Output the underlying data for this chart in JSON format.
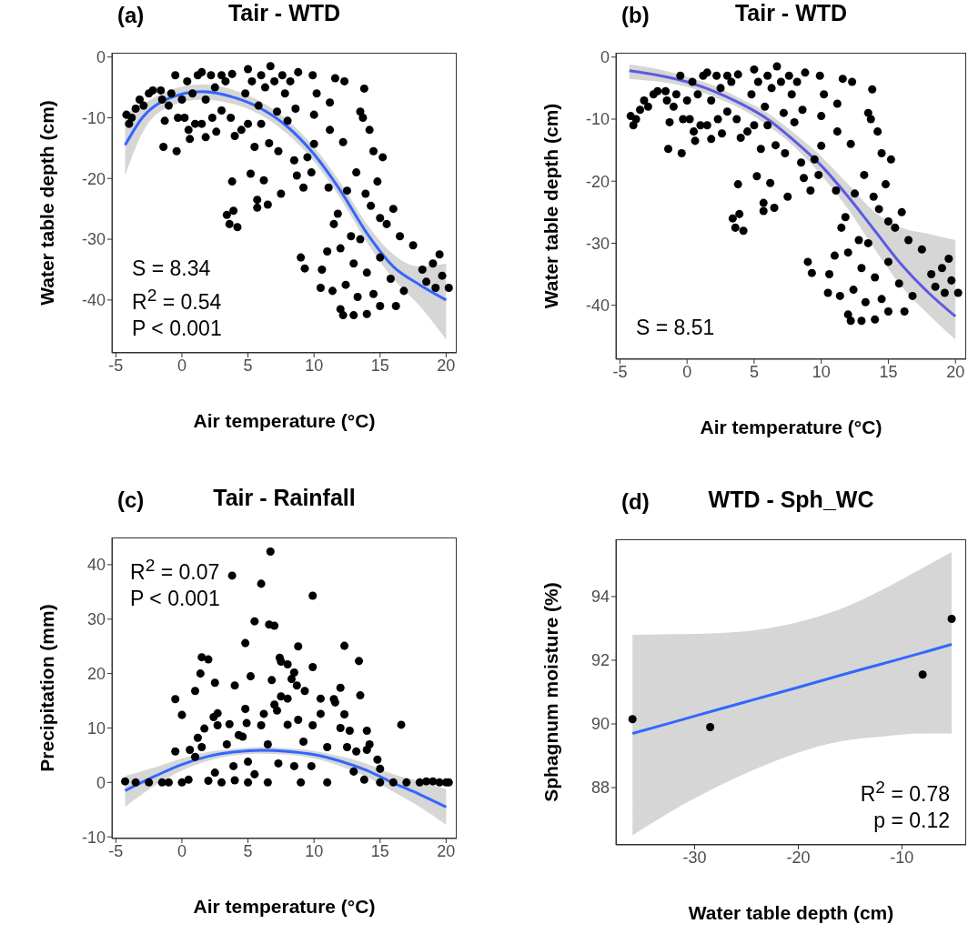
{
  "chart_data": [
    {
      "type": "scatter",
      "title": "Tair - WTD",
      "xlabel": "Air temperature (°C)",
      "ylabel": "Water table depth (cm)",
      "xlim": [
        -5.3,
        20.8
      ],
      "xticks": [
        -5,
        0,
        5,
        10,
        15,
        20
      ],
      "ylim": [
        -48.7,
        0.7
      ],
      "yticks": [
        0,
        -10,
        -20,
        -30,
        -40
      ],
      "annotations": [
        "(a)",
        "S = 8.34",
        "R$^{2}$ = 0.54",
        "P < 0.001"
      ],
      "series": [
        {
          "marker": "circle",
          "color": "#000000",
          "x": [
            -4.2,
            -4,
            -3.8,
            -3.5,
            -3.2,
            -2.9,
            -2.5,
            -2.2,
            -1.6,
            -1.5,
            -1.3,
            -1.4,
            -1,
            -0.8,
            -0.5,
            -0.4,
            -0.3,
            0,
            0.2,
            0.4,
            0.5,
            0.6,
            0.8,
            1,
            1.2,
            1.5,
            1.5,
            1.8,
            1.8,
            2.2,
            2.3,
            2.5,
            2.6,
            3,
            3,
            3.3,
            3.4,
            3.6,
            3.7,
            3.8,
            3.8,
            3.9,
            4,
            4.2,
            4.5,
            4.8,
            5,
            5,
            5.2,
            5.3,
            5.5,
            5.7,
            5.7,
            5.8,
            6,
            6,
            6.2,
            6.3,
            6.5,
            6.6,
            6.7,
            7,
            7.2,
            7.3,
            7.5,
            7.6,
            7.8,
            8,
            8.2,
            8.5,
            8.6,
            8.7,
            8.8,
            9,
            9.2,
            9.3,
            9.5,
            9.8,
            9.9,
            10,
            10,
            10.2,
            10.5,
            10.6,
            11,
            11.1,
            11.2,
            11.2,
            11.4,
            11.5,
            11.6,
            11.8,
            12,
            12,
            12.2,
            12.2,
            12.3,
            12.4,
            12.5,
            12.8,
            13,
            13,
            13.2,
            13.3,
            13.5,
            13.5,
            13.7,
            13.8,
            13.9,
            14,
            14,
            14.2,
            14.3,
            14.5,
            14.5,
            14.8,
            15,
            15,
            15,
            15.2,
            15.5,
            15.8,
            16,
            16.2,
            16.5,
            16.8,
            17.5,
            18.2,
            18.5,
            19,
            19.2,
            19.5,
            19.7,
            20.2
          ],
          "values": [
            -9.5,
            -11,
            -10,
            -8.5,
            -7,
            -8,
            -6,
            -5.5,
            -5.5,
            -7,
            -10.5,
            -14.8,
            -8,
            -6,
            -3,
            -15.5,
            -10,
            -7,
            -10,
            -4,
            -12,
            -13.5,
            -6,
            -11,
            -3,
            -2.5,
            -11,
            -7,
            -13.2,
            -3,
            -10,
            -5,
            -12.3,
            -3,
            -8.8,
            -4,
            -26,
            -27.5,
            -10,
            -2.8,
            -20.5,
            -25.3,
            -13,
            -28,
            -12,
            -6,
            -2,
            -11,
            -19.2,
            -4,
            -14.8,
            -23.5,
            -24.8,
            -8,
            -3,
            -11,
            -20.3,
            -5,
            -24.3,
            -14.2,
            -1.5,
            -4,
            -9,
            -15.5,
            -22.5,
            -3,
            -6,
            -10.5,
            -4,
            -17,
            -8.5,
            -19.5,
            -2.5,
            -33,
            -21.5,
            -34.8,
            -16.5,
            -19,
            -3,
            -14.3,
            -9.5,
            -6,
            -38,
            -35,
            -32,
            -21.5,
            -7.5,
            -12,
            -38.5,
            -27.5,
            -3.5,
            -25.8,
            -31.5,
            -41.5,
            -14,
            -42.5,
            -4,
            -37.5,
            -22,
            -29.5,
            -34,
            -42.5,
            -19,
            -39.5,
            -9,
            -30,
            -10,
            -5.2,
            -22.5,
            -35.5,
            -42.3,
            -12,
            -24.5,
            -39,
            -15.5,
            -20.5,
            -26.5,
            -33,
            -41,
            -16.5,
            -27.5,
            -36.5,
            -25,
            -41,
            -29.5,
            -38.5,
            -31,
            -35,
            -37,
            -34,
            -38,
            -32.5,
            -36,
            -38
          ]
        },
        {
          "type": "line",
          "marker": "none",
          "color": "#3366ff",
          "x": [
            -4.3,
            -3,
            -1,
            1.5,
            4,
            6,
            8,
            10,
            12,
            14,
            16,
            18,
            20
          ],
          "values": [
            -14.5,
            -10,
            -6.8,
            -5.7,
            -6.7,
            -8.5,
            -11.5,
            -16,
            -22,
            -29,
            -34.5,
            -37.5,
            -40
          ],
          "lower": [
            -19.5,
            -12.5,
            -8.2,
            -7,
            -7.8,
            -9.6,
            -12.7,
            -17.2,
            -23.3,
            -30.5,
            -36.5,
            -41,
            -46.5
          ],
          "upper": [
            -9.5,
            -7.8,
            -5.5,
            -4.5,
            -5.5,
            -7.4,
            -10.4,
            -14.8,
            -20.7,
            -27.5,
            -32.5,
            -34.5,
            -34
          ]
        }
      ]
    },
    {
      "type": "scatter",
      "title": "Tair - WTD",
      "xlabel": "Air temperature (°C)",
      "ylabel": "Water table depth (cm)",
      "xlim": [
        -5.3,
        20.8
      ],
      "xticks": [
        -5,
        0,
        5,
        10,
        15,
        20
      ],
      "ylim": [
        -48.7,
        0.7
      ],
      "yticks": [
        0,
        -10,
        -20,
        -30,
        -40
      ],
      "annotations": [
        "(b)",
        "S = 8.51"
      ],
      "series": [
        {
          "marker": "circle",
          "color": "#000000",
          "x": [
            -4.2,
            -4,
            -3.8,
            -3.5,
            -3.2,
            -2.9,
            -2.5,
            -2.2,
            -1.6,
            -1.5,
            -1.3,
            -1.4,
            -1,
            -0.8,
            -0.5,
            -0.4,
            -0.3,
            0,
            0.2,
            0.4,
            0.5,
            0.6,
            0.8,
            1,
            1.2,
            1.5,
            1.5,
            1.8,
            1.8,
            2.2,
            2.3,
            2.5,
            2.6,
            3,
            3,
            3.3,
            3.4,
            3.6,
            3.7,
            3.8,
            3.8,
            3.9,
            4,
            4.2,
            4.5,
            4.8,
            5,
            5,
            5.2,
            5.3,
            5.5,
            5.7,
            5.7,
            5.8,
            6,
            6,
            6.2,
            6.3,
            6.5,
            6.6,
            6.7,
            7,
            7.2,
            7.3,
            7.5,
            7.6,
            7.8,
            8,
            8.2,
            8.5,
            8.6,
            8.7,
            8.8,
            9,
            9.2,
            9.3,
            9.5,
            9.8,
            9.9,
            10,
            10,
            10.2,
            10.5,
            10.6,
            11,
            11.1,
            11.2,
            11.2,
            11.4,
            11.5,
            11.6,
            11.8,
            12,
            12,
            12.2,
            12.2,
            12.3,
            12.4,
            12.5,
            12.8,
            13,
            13,
            13.2,
            13.3,
            13.5,
            13.5,
            13.7,
            13.8,
            13.9,
            14,
            14,
            14.2,
            14.3,
            14.5,
            14.5,
            14.8,
            15,
            15,
            15,
            15.2,
            15.5,
            15.8,
            16,
            16.2,
            16.5,
            16.8,
            17.5,
            18.2,
            18.5,
            19,
            19.2,
            19.5,
            19.7,
            20.2
          ],
          "values": [
            -9.5,
            -11,
            -10,
            -8.5,
            -7,
            -8,
            -6,
            -5.5,
            -5.5,
            -7,
            -10.5,
            -14.8,
            -8,
            -6,
            -3,
            -15.5,
            -10,
            -7,
            -10,
            -4,
            -12,
            -13.5,
            -6,
            -11,
            -3,
            -2.5,
            -11,
            -7,
            -13.2,
            -3,
            -10,
            -5,
            -12.3,
            -3,
            -8.8,
            -4,
            -26,
            -27.5,
            -10,
            -2.8,
            -20.5,
            -25.3,
            -13,
            -28,
            -12,
            -6,
            -2,
            -11,
            -19.2,
            -4,
            -14.8,
            -23.5,
            -24.8,
            -8,
            -3,
            -11,
            -20.3,
            -5,
            -24.3,
            -14.2,
            -1.5,
            -4,
            -9,
            -15.5,
            -22.5,
            -3,
            -6,
            -10.5,
            -4,
            -17,
            -8.5,
            -19.5,
            -2.5,
            -33,
            -21.5,
            -34.8,
            -16.5,
            -19,
            -3,
            -14.3,
            -9.5,
            -6,
            -38,
            -35,
            -32,
            -21.5,
            -7.5,
            -12,
            -38.5,
            -27.5,
            -3.5,
            -25.8,
            -31.5,
            -41.5,
            -14,
            -42.5,
            -4,
            -37.5,
            -22,
            -29.5,
            -34,
            -42.5,
            -19,
            -39.5,
            -9,
            -30,
            -10,
            -5.2,
            -22.5,
            -35.5,
            -42.3,
            -12,
            -24.5,
            -39,
            -15.5,
            -20.5,
            -26.5,
            -33,
            -41,
            -16.5,
            -27.5,
            -36.5,
            -25,
            -41,
            -29.5,
            -38.5,
            -31,
            -35,
            -37,
            -34,
            -38,
            -32.5,
            -36,
            -38
          ]
        },
        {
          "type": "line",
          "marker": "none",
          "color": "#5b5be0",
          "x": [
            -4.3,
            -2,
            0,
            2,
            4,
            6,
            8,
            10,
            12,
            14,
            16,
            18,
            20
          ],
          "values": [
            -2.2,
            -3,
            -4,
            -5.5,
            -7.5,
            -10,
            -13.5,
            -17.5,
            -22.5,
            -28,
            -33.5,
            -38,
            -41.8
          ],
          "lower": [
            -3.5,
            -4,
            -4.8,
            -6.4,
            -8.3,
            -11,
            -14.5,
            -19,
            -24.5,
            -31,
            -37,
            -41.5,
            -45.5
          ],
          "upper": [
            -1.2,
            -2,
            -3.2,
            -4.6,
            -6.7,
            -9,
            -12.3,
            -16,
            -20.5,
            -25,
            -27.5,
            -28.5,
            -29.5
          ]
        }
      ]
    },
    {
      "type": "scatter",
      "title": "Tair - Rainfall",
      "xlabel": "Air temperature (°C)",
      "ylabel": "Precipitation (mm)",
      "xlim": [
        -5.3,
        20.8
      ],
      "xticks": [
        -5,
        0,
        5,
        10,
        15,
        20
      ],
      "ylim": [
        -10.3,
        45
      ],
      "yticks": [
        -10,
        0,
        10,
        20,
        30,
        40
      ],
      "annotations": [
        "(c)",
        "R$^{2}$ = 0.07",
        "P < 0.001"
      ],
      "series": [
        {
          "marker": "circle",
          "color": "#000000",
          "x": [
            -4.3,
            -3.5,
            -2.5,
            -1.5,
            -1,
            -0.5,
            -0.5,
            0,
            0,
            0.5,
            0.6,
            1,
            1,
            1.2,
            1.4,
            1.5,
            1.5,
            1.7,
            2,
            2,
            2.4,
            2.5,
            2.5,
            2.7,
            2.7,
            3,
            3.4,
            3.6,
            3.8,
            3.9,
            4,
            4,
            4.3,
            4.6,
            4.8,
            4.8,
            4.9,
            5,
            5,
            5.2,
            5.5,
            5.5,
            6,
            6,
            6.2,
            6.5,
            6.5,
            6.6,
            6.7,
            6.8,
            7,
            7,
            7.2,
            7.3,
            7.4,
            7.5,
            7.5,
            8,
            8,
            8,
            8.3,
            8.5,
            8.5,
            8.7,
            8.8,
            8.8,
            9,
            9.2,
            9.3,
            9.8,
            9.9,
            9.9,
            9.9,
            10.5,
            10.5,
            11,
            11,
            11.5,
            11.6,
            12,
            12,
            12.3,
            12.3,
            12.5,
            12.7,
            13,
            13.2,
            13.4,
            13.5,
            13.8,
            14,
            14,
            14.2,
            14.8,
            15,
            15,
            16,
            16.6,
            17,
            18,
            18.5,
            19,
            19.5,
            20,
            20.2
          ],
          "values": [
            0.2,
            0,
            0,
            0,
            0,
            5.7,
            15.3,
            12.4,
            0,
            0.5,
            6,
            16.8,
            4.7,
            8.2,
            20,
            23,
            6.5,
            9.9,
            22.6,
            0.3,
            12,
            18.3,
            1.8,
            12.7,
            10.5,
            0,
            7,
            10.7,
            38,
            3,
            0.4,
            17.8,
            8.7,
            8.4,
            13.5,
            25.6,
            10.9,
            0,
            3.8,
            19.5,
            29.6,
            1.5,
            36.5,
            10.5,
            12.6,
            7,
            0,
            29,
            42.4,
            18.8,
            28.8,
            14.3,
            13.2,
            3.5,
            22.9,
            22.2,
            15.8,
            15.4,
            21.7,
            10.6,
            19,
            20.2,
            3,
            17.8,
            11.5,
            25,
            0,
            7.5,
            16.8,
            3,
            34.3,
            21.2,
            10.5,
            15.4,
            12.6,
            6.5,
            0,
            15.3,
            14.7,
            17.4,
            10,
            25.1,
            12.5,
            6.5,
            9.5,
            2,
            5.7,
            22.3,
            16,
            0.5,
            6,
            9.5,
            7,
            4.2,
            2.5,
            0,
            0,
            10.6,
            0,
            0,
            0.2,
            0.2,
            0,
            0,
            0
          ]
        },
        {
          "type": "line",
          "marker": "none",
          "color": "#3366ff",
          "x": [
            -4.3,
            -2,
            0,
            2,
            4,
            6,
            8,
            10,
            12,
            14,
            16,
            18,
            20
          ],
          "values": [
            -1.5,
            1.2,
            3.3,
            4.8,
            5.6,
            5.9,
            5.7,
            5.1,
            3.9,
            2.2,
            -0.1,
            -2.2,
            -4.5
          ],
          "lower": [
            -4.5,
            -0.5,
            2.2,
            4,
            5,
            5.3,
            5.1,
            4.4,
            3,
            1,
            -1.7,
            -4.5,
            -7.8
          ],
          "upper": [
            1.2,
            2.8,
            4.4,
            5.6,
            6.2,
            6.5,
            6.3,
            5.8,
            4.8,
            3.4,
            1.5,
            0.2,
            -1.2
          ]
        }
      ]
    },
    {
      "type": "scatter",
      "title": "WTD - Sph_WC",
      "xlabel": "Water table depth (cm)",
      "ylabel": "Sphagnum moisture (%)",
      "xlim": [
        -37.6,
        -3.8
      ],
      "xticks": [
        -30,
        -20,
        -10
      ],
      "ylim": [
        86.2,
        95.8
      ],
      "yticks": [
        88,
        90,
        92,
        94
      ],
      "annotations": [
        "(d)",
        "R$^{2}$ = 0.78",
        "p = 0.12"
      ],
      "series": [
        {
          "marker": "circle",
          "color": "#000000",
          "x": [
            -36,
            -28.5,
            -8,
            -5.2
          ],
          "values": [
            90.15,
            89.9,
            91.55,
            93.3
          ]
        },
        {
          "type": "line",
          "marker": "none",
          "color": "#3366ff",
          "x": [
            -36,
            -32,
            -28,
            -24,
            -20,
            -16,
            -12,
            -8,
            -5.2
          ],
          "values": [
            89.7,
            90.06,
            90.43,
            90.79,
            91.15,
            91.52,
            91.88,
            92.24,
            92.5
          ],
          "lower": [
            86.5,
            87.3,
            88,
            88.6,
            89.1,
            89.45,
            89.6,
            89.7,
            89.7
          ],
          "upper": [
            92.8,
            92.82,
            92.85,
            92.95,
            93.2,
            93.6,
            94.2,
            94.9,
            95.4
          ]
        }
      ]
    }
  ]
}
